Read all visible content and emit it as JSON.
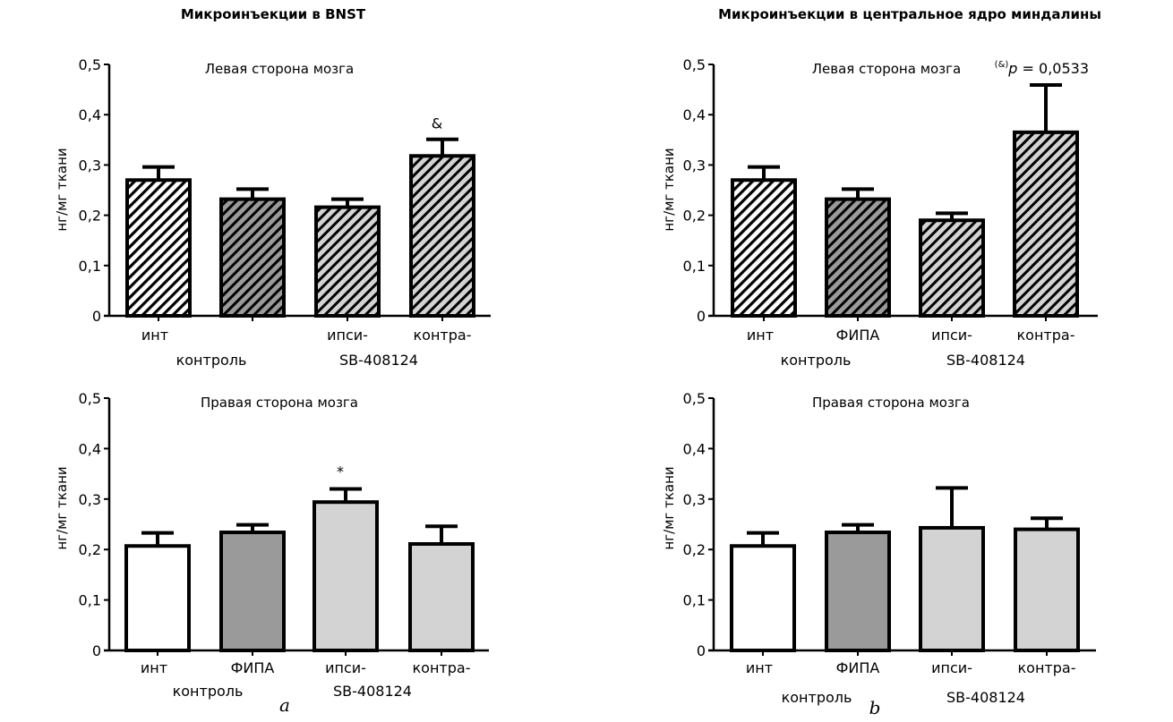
{
  "chart_data": [
    {
      "type": "bar",
      "panel": "a",
      "title": "Микроинъекции в BNST",
      "subtitle": "Левая сторона мозга",
      "ylabel": "нг/мг ткани",
      "ylim": [
        0,
        0.5
      ],
      "yticks": [
        "0",
        "0,1",
        "0,2",
        "0,3",
        "0,4",
        "0,5"
      ],
      "categories": [
        "инт",
        "",
        "ипси-",
        "контра-"
      ],
      "group_labels": [
        "контроль",
        "SB-408124"
      ],
      "values": [
        0.27,
        0.232,
        0.216,
        0.318
      ],
      "errors_upper": [
        0.296,
        0.252,
        0.232,
        0.351
      ],
      "fills": [
        "white-hatched",
        "dark-gray-hatched",
        "light-gray-hatched",
        "light-gray-hatched"
      ],
      "annotations": [
        {
          "bar": 3,
          "text": "&"
        }
      ]
    },
    {
      "type": "bar",
      "panel": "b",
      "title": "Микроинъекции в центральное ядро миндалины",
      "subtitle": "Левая сторона мозга",
      "ylabel": "нг/мг ткани",
      "ylim": [
        0,
        0.5
      ],
      "yticks": [
        "0",
        "0,1",
        "0,2",
        "0,3",
        "0,4",
        "0,5"
      ],
      "categories": [
        "инт",
        "ФИПА",
        "ипси-",
        "контра-"
      ],
      "group_labels": [
        "контроль",
        "SB-408124"
      ],
      "values": [
        0.27,
        0.232,
        0.19,
        0.365
      ],
      "errors_upper": [
        0.296,
        0.252,
        0.204,
        0.459
      ],
      "fills": [
        "white-hatched",
        "dark-gray-hatched",
        "light-gray-hatched",
        "light-gray-hatched"
      ],
      "annotations": [
        {
          "text_sup": "(&)",
          "text_p": "p",
          "text": " = 0,0533"
        }
      ]
    },
    {
      "type": "bar",
      "panel": "a",
      "title": "",
      "subtitle": "Правая сторона мозга",
      "ylabel": "нг/мг ткани",
      "ylim": [
        0,
        0.5
      ],
      "yticks": [
        "0",
        "0,1",
        "0,2",
        "0,3",
        "0,4",
        "0,5"
      ],
      "categories": [
        "инт",
        "ФИПА",
        "ипси-",
        "контра-"
      ],
      "group_labels": [
        "контроль",
        "SB-408124"
      ],
      "values": [
        0.207,
        0.234,
        0.294,
        0.211
      ],
      "errors_upper": [
        0.233,
        0.249,
        0.32,
        0.246
      ],
      "fills": [
        "white",
        "dark-gray",
        "light-gray",
        "light-gray"
      ],
      "annotations": [
        {
          "bar": 2,
          "text": "*"
        }
      ],
      "panel_label": "a"
    },
    {
      "type": "bar",
      "panel": "b",
      "title": "",
      "subtitle": "Правая сторона мозга",
      "ylabel": "нг/мг ткани",
      "ylim": [
        0,
        0.5
      ],
      "yticks": [
        "0",
        "0,1",
        "0,2",
        "0,3",
        "0,4",
        "0,5"
      ],
      "categories": [
        "инт",
        "ФИПА",
        "ипси-",
        "контра-"
      ],
      "group_labels": [
        "контроль",
        "SB-408124"
      ],
      "values": [
        0.207,
        0.234,
        0.243,
        0.24
      ],
      "errors_upper": [
        0.233,
        0.249,
        0.322,
        0.262
      ],
      "fills": [
        "white",
        "dark-gray",
        "light-gray",
        "light-gray"
      ],
      "annotations": [],
      "panel_label": "b"
    }
  ],
  "colors": {
    "white": "#ffffff",
    "dark_gray": "#9a9a9a",
    "light_gray": "#d3d3d3",
    "stroke": "#000000"
  }
}
